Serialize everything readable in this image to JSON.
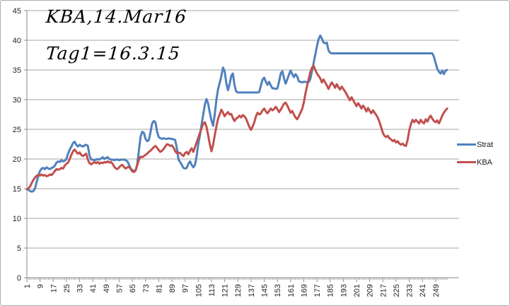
{
  "annotations": {
    "line1": "KBA,14.Mar16",
    "line2": "Tag1=16.3.15"
  },
  "colors": {
    "series_strat": "#4F81BD",
    "series_kba": "#C0504D",
    "gridline": "#A6A6A6",
    "axis": "#898989",
    "tick_text": "#262626",
    "background": "#FFFFFF",
    "frame_border": "#ABABAB"
  },
  "legend": {
    "position": "right",
    "items": [
      {
        "label": "Strat",
        "color": "#4F81BD"
      },
      {
        "label": "KBA",
        "color": "#C0504D"
      }
    ]
  },
  "chart_data": {
    "type": "line",
    "title": "KBA,14.Mar16",
    "subtitle": "Tag1=16.3.15",
    "xlabel": "",
    "ylabel": "",
    "ylim": [
      0,
      45
    ],
    "y_tick_step": 5,
    "y_tick_labels": [
      "0",
      "5",
      "10",
      "15",
      "20",
      "25",
      "30",
      "35",
      "40",
      "45"
    ],
    "x_tick_labels": [
      "1",
      "9",
      "17",
      "25",
      "33",
      "41",
      "49",
      "57",
      "65",
      "73",
      "81",
      "89",
      "97",
      "105",
      "113",
      "121",
      "129",
      "137",
      "145",
      "153",
      "161",
      "169",
      "177",
      "185",
      "193",
      "201",
      "209",
      "217",
      "225",
      "233",
      "241",
      "249"
    ],
    "x_label_step": 8,
    "grid": true,
    "legend_position": "right",
    "series": [
      {
        "name": "Strat",
        "color": "#4F81BD",
        "values": [
          14.9,
          14.8,
          14.6,
          14.5,
          14.6,
          15.1,
          16.2,
          17.3,
          18.0,
          18.4,
          18.5,
          18.3,
          18.6,
          18.4,
          18.3,
          18.5,
          18.6,
          18.9,
          19.4,
          19.6,
          19.5,
          19.8,
          19.6,
          19.7,
          20.0,
          20.9,
          21.6,
          22.1,
          22.7,
          22.9,
          22.4,
          22.1,
          22.4,
          22.2,
          22.1,
          22.3,
          22.4,
          22.2,
          20.6,
          19.9,
          19.9,
          19.8,
          19.9,
          20.0,
          19.9,
          20.1,
          20.3,
          20.0,
          20.2,
          20.3,
          20.0,
          19.9,
          19.9,
          19.8,
          19.9,
          19.9,
          19.8,
          19.9,
          19.9,
          19.9,
          19.8,
          19.6,
          19.0,
          18.4,
          18.1,
          18.0,
          18.1,
          19.2,
          21.5,
          23.8,
          24.6,
          24.4,
          23.4,
          23.0,
          23.2,
          24.5,
          26.0,
          26.4,
          26.2,
          24.6,
          23.7,
          23.5,
          23.4,
          23.5,
          23.4,
          23.4,
          23.5,
          23.4,
          23.4,
          23.3,
          23.2,
          21.8,
          19.9,
          19.5,
          19.0,
          18.5,
          18.4,
          18.5,
          19.2,
          19.6,
          19.0,
          18.6,
          19.0,
          20.5,
          22.5,
          24.0,
          25.8,
          27.5,
          29.2,
          30.1,
          29.3,
          27.8,
          26.5,
          25.6,
          27.5,
          30.0,
          31.8,
          32.8,
          34.0,
          35.4,
          34.8,
          32.8,
          31.6,
          32.6,
          34.0,
          34.4,
          32.4,
          31.4,
          31.2,
          31.2,
          31.2,
          31.2,
          31.2,
          31.2,
          31.2,
          31.2,
          31.2,
          31.2,
          31.2,
          31.2,
          31.2,
          31.3,
          32.4,
          33.4,
          33.7,
          33.0,
          32.5,
          33.0,
          32.4,
          31.9,
          31.9,
          31.8,
          31.9,
          33.0,
          34.4,
          34.8,
          33.6,
          32.7,
          33.4,
          34.2,
          34.9,
          34.3,
          33.8,
          34.3,
          33.9,
          33.1,
          33.0,
          32.9,
          33.0,
          33.0,
          32.9,
          33.0,
          33.5,
          34.8,
          36.2,
          37.6,
          39.0,
          40.2,
          40.8,
          40.3,
          39.6,
          39.5,
          39.6,
          38.3,
          37.9,
          37.8,
          37.8,
          37.8,
          37.8,
          37.8,
          37.8,
          37.8,
          37.8,
          37.8,
          37.8,
          37.8,
          37.8,
          37.8,
          37.8,
          37.8,
          37.8,
          37.8,
          37.8,
          37.8,
          37.8,
          37.8,
          37.8,
          37.8,
          37.8,
          37.8,
          37.8,
          37.8,
          37.8,
          37.8,
          37.8,
          37.8,
          37.8,
          37.8,
          37.8,
          37.8,
          37.8,
          37.8,
          37.8,
          37.8,
          37.8,
          37.8,
          37.8,
          37.8,
          37.8,
          37.8,
          37.8,
          37.8,
          37.8,
          37.8,
          37.8,
          37.8,
          37.8,
          37.8,
          37.8,
          37.8,
          37.8,
          37.8,
          37.8,
          37.8,
          37.8,
          37.8,
          37.8,
          37.2,
          36.2,
          35.2,
          34.7,
          34.4,
          34.9,
          34.3,
          34.9,
          35.0
        ]
      },
      {
        "name": "KBA",
        "color": "#C0504D",
        "values": [
          14.9,
          15.1,
          15.4,
          16.0,
          16.5,
          16.9,
          17.2,
          17.3,
          17.2,
          17.4,
          17.2,
          17.3,
          17.1,
          17.2,
          17.4,
          17.3,
          17.6,
          18.0,
          18.3,
          18.2,
          18.3,
          18.5,
          18.4,
          18.9,
          19.2,
          19.4,
          20.0,
          20.7,
          21.3,
          21.6,
          21.2,
          20.9,
          21.1,
          20.7,
          20.5,
          20.7,
          20.9,
          19.9,
          19.3,
          19.1,
          19.3,
          19.5,
          19.3,
          19.5,
          19.2,
          19.4,
          19.3,
          19.5,
          19.4,
          19.6,
          19.4,
          19.5,
          19.2,
          18.7,
          18.4,
          18.3,
          18.6,
          18.9,
          19.0,
          18.6,
          18.4,
          18.6,
          18.7,
          18.3,
          17.9,
          17.8,
          18.1,
          19.0,
          19.9,
          20.4,
          20.3,
          20.5,
          20.7,
          20.9,
          21.2,
          21.4,
          21.7,
          22.0,
          22.2,
          21.9,
          21.5,
          21.2,
          21.4,
          21.7,
          22.1,
          22.5,
          22.4,
          22.2,
          22.3,
          21.9,
          21.3,
          21.0,
          21.1,
          21.0,
          20.7,
          20.5,
          21.0,
          21.2,
          20.8,
          21.4,
          21.8,
          21.2,
          22.0,
          22.8,
          23.6,
          24.4,
          25.2,
          25.9,
          26.2,
          25.4,
          24.0,
          22.5,
          21.3,
          22.4,
          24.0,
          25.5,
          26.8,
          27.5,
          28.3,
          27.8,
          27.2,
          27.6,
          27.9,
          27.5,
          27.6,
          26.9,
          26.4,
          26.8,
          27.0,
          27.3,
          27.0,
          27.4,
          27.2,
          26.8,
          26.1,
          25.4,
          24.9,
          25.5,
          26.2,
          27.2,
          27.8,
          27.5,
          27.7,
          28.2,
          28.5,
          28.0,
          27.7,
          28.1,
          28.5,
          28.2,
          28.4,
          28.8,
          28.4,
          27.9,
          28.3,
          28.8,
          29.3,
          29.5,
          29.0,
          28.4,
          27.8,
          28.1,
          27.5,
          27.0,
          26.7,
          27.2,
          27.8,
          28.4,
          29.5,
          31.0,
          32.3,
          33.5,
          34.6,
          35.4,
          35.7,
          35.0,
          34.4,
          34.0,
          33.6,
          32.9,
          33.4,
          32.9,
          32.4,
          31.8,
          32.4,
          32.9,
          32.5,
          32.0,
          32.6,
          32.1,
          31.7,
          32.2,
          31.8,
          31.4,
          30.9,
          30.4,
          29.9,
          30.4,
          29.9,
          29.4,
          28.9,
          29.4,
          29.0,
          28.5,
          29.0,
          28.6,
          28.0,
          28.6,
          28.1,
          27.7,
          28.2,
          27.8,
          27.4,
          26.9,
          26.2,
          25.3,
          24.4,
          23.9,
          23.7,
          23.9,
          23.5,
          23.3,
          23.0,
          23.2,
          22.8,
          23.0,
          22.6,
          22.4,
          22.6,
          22.3,
          22.2,
          23.2,
          24.8,
          25.9,
          26.6,
          26.2,
          26.6,
          26.3,
          26.0,
          26.6,
          26.2,
          26.0,
          26.7,
          26.3,
          26.9,
          27.3,
          26.8,
          26.4,
          26.2,
          26.5,
          26.0,
          26.6,
          27.3,
          27.8,
          28.2,
          28.5
        ]
      }
    ]
  }
}
